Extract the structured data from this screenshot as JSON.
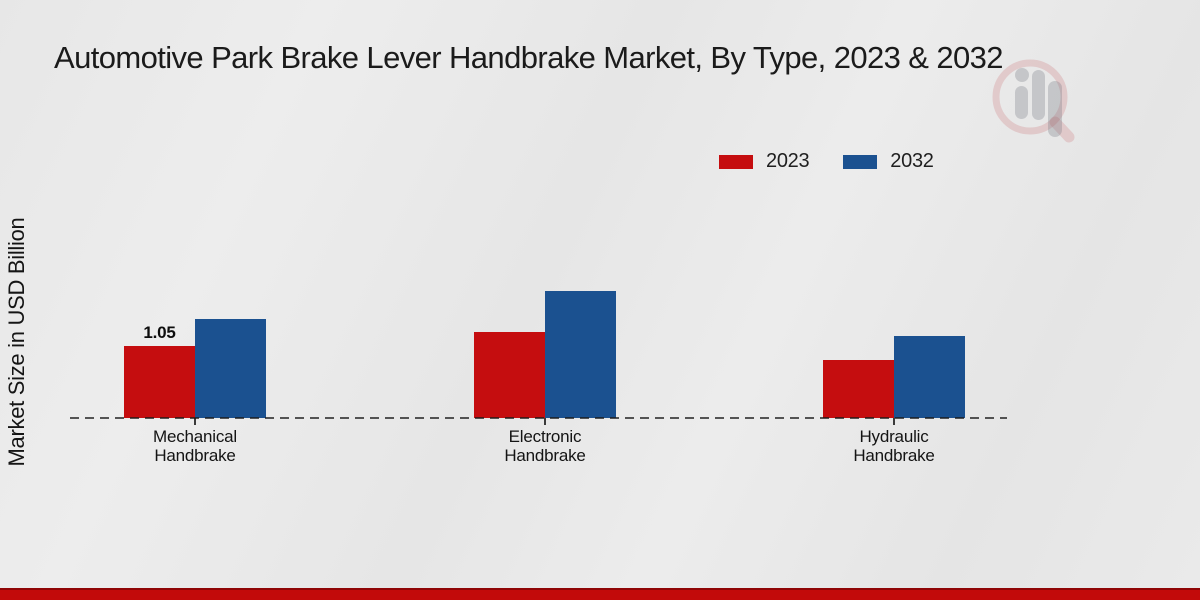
{
  "title": "Automotive Park Brake Lever Handbrake Market, By Type, 2023 & 2032",
  "watermark_icon": "magnifier-bar-chart-logo",
  "footer": {
    "bar_color": "#c20a0a"
  },
  "chart_data": {
    "type": "bar",
    "title": "Automotive Park Brake Lever Handbrake Market, By Type, 2023 & 2032",
    "ylabel": "Market Size in USD Billion",
    "xlabel": "",
    "categories": [
      "Mechanical Handbrake",
      "Electronic Handbrake",
      "Hydraulic Handbrake"
    ],
    "series": [
      {
        "name": "2023",
        "color": "#c50d0f",
        "values": [
          1.05,
          1.25,
          0.85
        ],
        "labels": [
          "1.05",
          null,
          null
        ]
      },
      {
        "name": "2032",
        "color": "#1b5190",
        "values": [
          1.45,
          1.85,
          1.2
        ],
        "labels": [
          null,
          null,
          null
        ]
      }
    ],
    "ylim": [
      0,
      2
    ],
    "grid": false,
    "baseline_style": "dashed",
    "legend_position": "top-right",
    "legend_entries": [
      "2023",
      "2032"
    ]
  }
}
